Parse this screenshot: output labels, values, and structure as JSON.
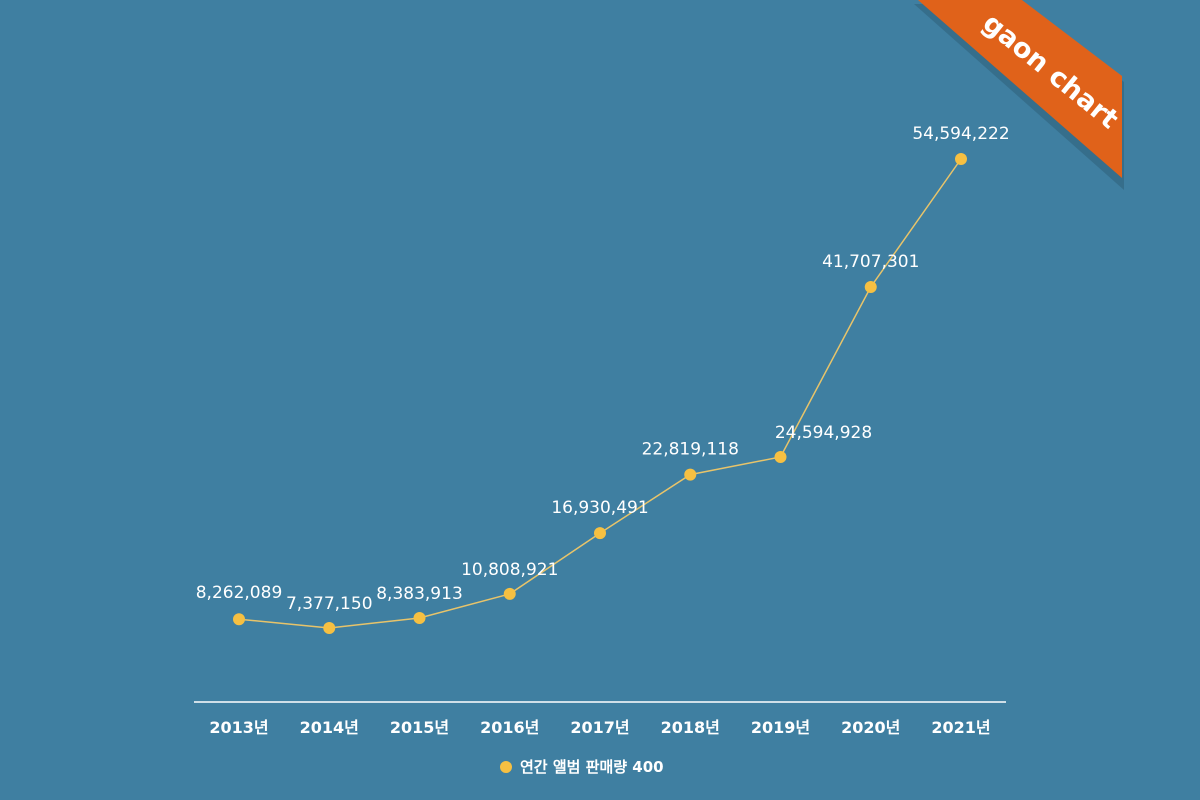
{
  "brand": {
    "ribbon_text": "gaon chart",
    "ribbon_color": "#e0621a"
  },
  "colors": {
    "background": "#3f7fa1",
    "series": "#f6c042",
    "line": "#e8c46a",
    "text": "#ffffff"
  },
  "legend": {
    "label": "연간 앨범 판매량 400"
  },
  "chart_data": {
    "type": "line",
    "title": "",
    "xlabel": "",
    "ylabel": "",
    "categories": [
      "2013년",
      "2014년",
      "2015년",
      "2016년",
      "2017년",
      "2018년",
      "2019년",
      "2020년",
      "2021년"
    ],
    "series": [
      {
        "name": "연간 앨범 판매량 400",
        "values": [
          8262089,
          7377150,
          8383913,
          10808921,
          16930491,
          22819118,
          24594928,
          41707301,
          54594222
        ],
        "labels": [
          "8,262,089",
          "7,377,150",
          "8,383,913",
          "10,808,921",
          "16,930,491",
          "22,819,118",
          "24,594,928",
          "41,707,301",
          "54,594,222"
        ]
      }
    ],
    "grid": false,
    "legend_position": "bottom",
    "y_axis_visible": false
  }
}
